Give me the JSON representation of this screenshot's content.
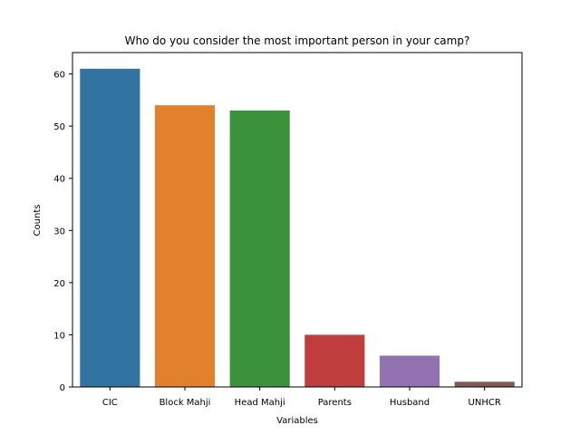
{
  "chart_data": {
    "type": "bar",
    "title": "Who do you consider the most important person in your camp?",
    "xlabel": "Variables",
    "ylabel": "Counts",
    "categories": [
      "CIC",
      "Block Mahji",
      "Head Mahji",
      "Parents",
      "Husband",
      "UNHCR"
    ],
    "values": [
      61,
      54,
      53,
      10,
      6,
      1
    ],
    "colors": [
      "#3274a1",
      "#e1812c",
      "#3a923a",
      "#c03d3e",
      "#9372b2",
      "#845b53"
    ],
    "ylim": [
      0,
      64.1
    ],
    "yticks": [
      0,
      10,
      20,
      30,
      40,
      50,
      60
    ],
    "grid": false,
    "legend": "none"
  }
}
